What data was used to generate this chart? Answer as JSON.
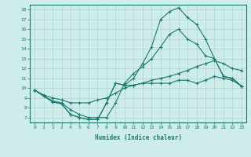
{
  "xlabel": "Humidex (Indice chaleur)",
  "background_color": "#ceecea",
  "grid_color": "#b0d4d0",
  "line_color": "#1a7a6e",
  "xlim": [
    -0.5,
    23.5
  ],
  "ylim": [
    6.5,
    18.5
  ],
  "xticks": [
    0,
    1,
    2,
    3,
    4,
    5,
    6,
    7,
    8,
    9,
    10,
    11,
    12,
    13,
    14,
    15,
    16,
    17,
    18,
    19,
    20,
    21,
    22,
    23
  ],
  "yticks": [
    7,
    8,
    9,
    10,
    11,
    12,
    13,
    14,
    15,
    16,
    17,
    18
  ],
  "series": [
    [
      9.8,
      9.2,
      8.6,
      8.4,
      7.3,
      7.0,
      6.8,
      6.8,
      8.5,
      10.5,
      10.3,
      10.3,
      10.5,
      10.5,
      10.5,
      10.5,
      10.8,
      10.8,
      10.5,
      10.8,
      11.2,
      11.0,
      10.8,
      10.2
    ],
    [
      9.8,
      9.3,
      9.0,
      8.8,
      8.5,
      8.5,
      8.5,
      8.8,
      9.0,
      9.5,
      10.0,
      10.3,
      10.5,
      10.8,
      11.0,
      11.2,
      11.5,
      11.8,
      12.2,
      12.5,
      12.8,
      12.5,
      12.0,
      11.8
    ],
    [
      9.8,
      9.2,
      8.7,
      8.5,
      7.8,
      7.3,
      7.0,
      7.0,
      7.0,
      8.5,
      10.5,
      11.5,
      12.2,
      13.0,
      14.2,
      15.5,
      16.0,
      15.0,
      14.5,
      13.3,
      13.0,
      11.2,
      11.0,
      10.2
    ],
    [
      9.8,
      9.2,
      8.6,
      8.4,
      7.3,
      7.0,
      6.8,
      6.8,
      8.5,
      10.5,
      10.3,
      11.0,
      12.5,
      14.2,
      17.0,
      17.8,
      18.2,
      17.2,
      16.5,
      15.0,
      13.0,
      11.2,
      11.0,
      10.2
    ]
  ]
}
